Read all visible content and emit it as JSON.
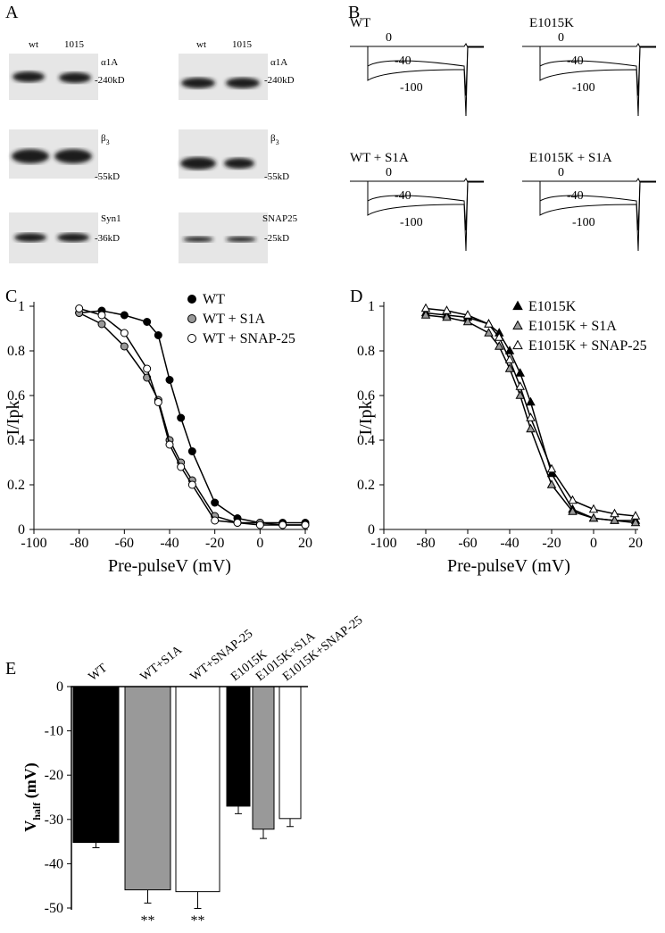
{
  "panels": {
    "A": {
      "label": "A",
      "left": {
        "lanes": [
          "wt",
          "1015"
        ],
        "blots": [
          {
            "protein": "α1A",
            "marker": "-240kD"
          },
          {
            "protein": "β",
            "protein_sub": "3",
            "marker": "-55kD"
          },
          {
            "protein": "Syn1",
            "marker": "-36kD"
          }
        ]
      },
      "right": {
        "lanes": [
          "wt",
          "1015"
        ],
        "blots": [
          {
            "protein": "α1A",
            "marker": "-240kD"
          },
          {
            "protein": "β",
            "protein_sub": "3",
            "marker": "-55kD"
          },
          {
            "protein": "SNAP25",
            "marker": "-25kD"
          }
        ]
      }
    },
    "B": {
      "label": "B",
      "traces": [
        {
          "name": "WT",
          "levels": [
            0,
            -40,
            -100
          ]
        },
        {
          "name": "E1015K",
          "levels": [
            0,
            -40,
            -100
          ]
        },
        {
          "name": "WT + S1A",
          "levels": [
            0,
            -40,
            -100
          ]
        },
        {
          "name": "E1015K + S1A",
          "levels": [
            0,
            -40,
            -100
          ]
        }
      ]
    }
  },
  "chart_data": [
    {
      "type": "line",
      "panel_label": "C",
      "xlabel": "Pre-pulseV (mV)",
      "ylabel": "I/Ipk",
      "x": [
        -80,
        -70,
        -60,
        -50,
        -45,
        -40,
        -35,
        -30,
        -20,
        -10,
        0,
        10,
        20
      ],
      "xlim": [
        -100,
        20
      ],
      "xticks": [
        -100,
        -80,
        -60,
        -40,
        -20,
        0,
        20
      ],
      "ylim": [
        0,
        1
      ],
      "yticks": [
        0,
        0.2,
        0.4,
        0.6,
        0.8,
        1
      ],
      "series": [
        {
          "name": "WT",
          "color": "#000000",
          "marker": "circle",
          "values": [
            0.97,
            0.98,
            0.96,
            0.93,
            0.87,
            0.67,
            0.5,
            0.35,
            0.12,
            0.05,
            0.03,
            0.03,
            0.03
          ]
        },
        {
          "name": "WT + S1A",
          "color": "#999999",
          "marker": "circle",
          "values": [
            0.97,
            0.92,
            0.82,
            0.68,
            0.58,
            0.4,
            0.3,
            0.22,
            0.06,
            0.03,
            0.03,
            0.02,
            0.02
          ]
        },
        {
          "name": "WT + SNAP-25",
          "color": "#ffffff",
          "marker": "circle",
          "values": [
            0.99,
            0.96,
            0.88,
            0.72,
            0.57,
            0.38,
            0.28,
            0.2,
            0.04,
            0.03,
            0.02,
            0.02,
            0.02
          ]
        }
      ]
    },
    {
      "type": "line",
      "panel_label": "D",
      "xlabel": "Pre-pulseV (mV)",
      "ylabel": "I/Ipk",
      "x": [
        -80,
        -70,
        -60,
        -50,
        -45,
        -40,
        -35,
        -30,
        -20,
        -10,
        0,
        10,
        20
      ],
      "xlim": [
        -100,
        20
      ],
      "xticks": [
        -100,
        -80,
        -60,
        -40,
        -20,
        0,
        20
      ],
      "ylim": [
        0,
        1
      ],
      "yticks": [
        0,
        0.2,
        0.4,
        0.6,
        0.8,
        1
      ],
      "series": [
        {
          "name": "E1015K",
          "color": "#000000",
          "marker": "triangle",
          "values": [
            0.97,
            0.96,
            0.95,
            0.92,
            0.88,
            0.8,
            0.7,
            0.57,
            0.25,
            0.09,
            0.05,
            0.04,
            0.04
          ]
        },
        {
          "name": "E1015K + S1A",
          "color": "#999999",
          "marker": "triangle",
          "values": [
            0.96,
            0.95,
            0.93,
            0.88,
            0.82,
            0.72,
            0.6,
            0.45,
            0.2,
            0.08,
            0.05,
            0.04,
            0.03
          ]
        },
        {
          "name": "E1015K + SNAP-25",
          "color": "#ffffff",
          "marker": "triangle",
          "values": [
            0.99,
            0.98,
            0.96,
            0.92,
            0.86,
            0.76,
            0.64,
            0.5,
            0.27,
            0.13,
            0.09,
            0.07,
            0.06
          ]
        }
      ]
    },
    {
      "type": "bar",
      "panel_label": "E",
      "ylabel": {
        "main": "V",
        "sub": "half",
        "unit": " (mV)"
      },
      "categories": [
        "WT",
        "WT+S1A",
        "WT+SNAP-25",
        "E1015K",
        "E1015K+S1A",
        "E1015K+SNAP-25"
      ],
      "values": [
        -35.2,
        -45.9,
        -46.3,
        -27,
        -32.2,
        -29.8
      ],
      "errors": [
        1.2,
        3,
        3.8,
        1.7,
        2.1,
        1.8
      ],
      "colors": [
        "#000000",
        "#999999",
        "#ffffff",
        "#000000",
        "#999999",
        "#ffffff"
      ],
      "value_annotations": [
        null,
        "**",
        "**",
        null,
        null,
        null
      ],
      "ylim": [
        -50,
        0
      ],
      "yticks": [
        0,
        -10,
        -20,
        -30,
        -40,
        -50
      ]
    }
  ]
}
